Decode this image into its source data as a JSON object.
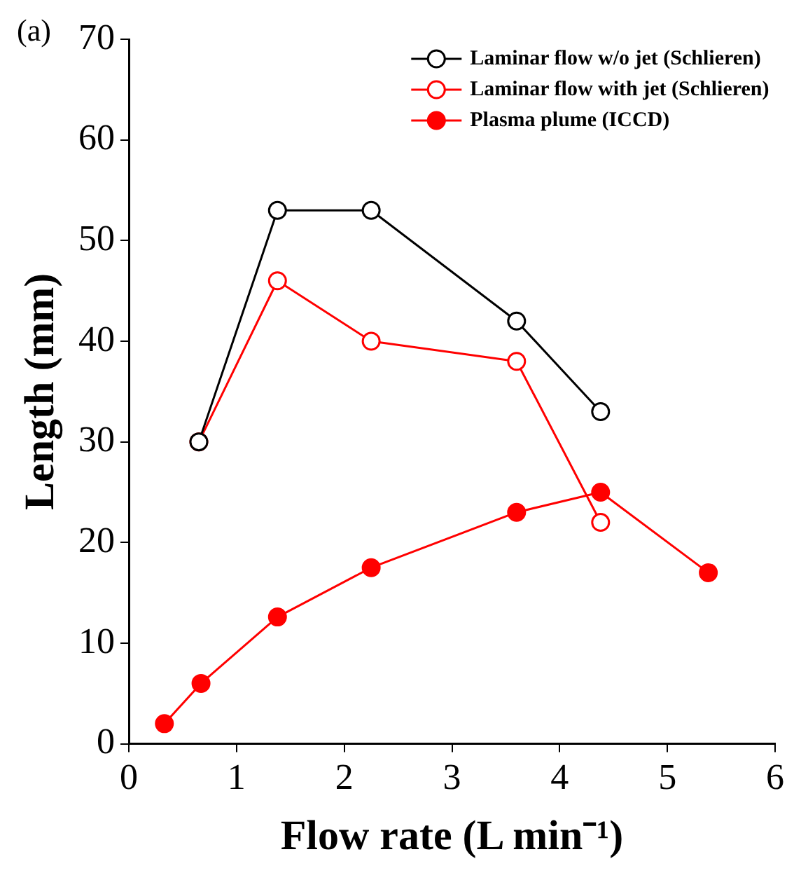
{
  "chart_data": {
    "type": "line",
    "xlabel": "Flow rate (L min⁻¹)",
    "ylabel": "Length (mm)",
    "annotations": [
      "(a)"
    ],
    "xlim": [
      0,
      6
    ],
    "xticks": [
      0,
      1,
      2,
      3,
      4,
      5,
      6
    ],
    "ylim": [
      0,
      70
    ],
    "yticks": [
      0,
      10,
      20,
      30,
      40,
      50,
      60,
      70
    ],
    "grid": false,
    "legend": "top right",
    "marker": "circle",
    "line_style": "solid",
    "series": [
      {
        "name": "Laminar flow w/o jet (Schlieren)",
        "color": "#000000",
        "x": [
          0.65,
          1.38,
          2.25,
          3.6,
          4.38
        ],
        "values": [
          30,
          53,
          53,
          42,
          33
        ],
        "marker": "open circle"
      },
      {
        "name": "Laminar flow with jet (Schlieren)",
        "color": "#ff0000",
        "x": [
          0.65,
          1.38,
          2.25,
          3.6,
          4.38
        ],
        "values": [
          30,
          46,
          40,
          38,
          22
        ],
        "marker": "open circle"
      },
      {
        "name": "Plasma plume (ICCD)",
        "color": "#ff0000",
        "x": [
          0.33,
          0.67,
          1.38,
          2.25,
          3.6,
          4.38,
          5.38
        ],
        "values": [
          2,
          6,
          12.6,
          17.5,
          23,
          25,
          17
        ],
        "marker": "circle"
      }
    ]
  }
}
